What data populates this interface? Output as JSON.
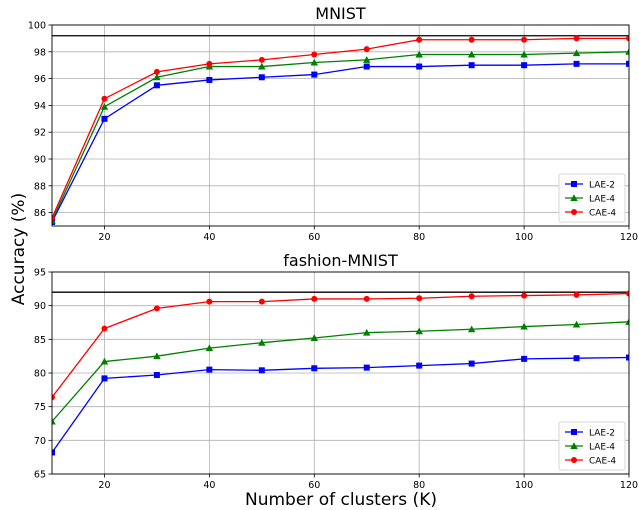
{
  "figure": {
    "ylabel": "Accuracy (%)",
    "xlabel": "Number of clusters (K)"
  },
  "chart_data": [
    {
      "type": "line",
      "title": "MNIST",
      "xlabel": "",
      "ylabel": "",
      "xlim": [
        10,
        120
      ],
      "ylim": [
        85,
        100
      ],
      "xticks": [
        20,
        40,
        60,
        80,
        100,
        120
      ],
      "yticks": [
        86,
        88,
        90,
        92,
        94,
        96,
        98,
        100
      ],
      "grid": true,
      "legend_position": "lower-right",
      "reference_line": 99.2,
      "reference_color": "#000000",
      "x": [
        10,
        20,
        30,
        40,
        50,
        60,
        70,
        80,
        90,
        100,
        110,
        120
      ],
      "series": [
        {
          "name": "LAE-2",
          "color": "#0000ff",
          "marker": "square",
          "values": [
            85.3,
            93.0,
            95.5,
            95.9,
            96.1,
            96.3,
            96.9,
            96.9,
            97.0,
            97.0,
            97.1,
            97.1
          ]
        },
        {
          "name": "LAE-4",
          "color": "#008000",
          "marker": "triangle",
          "values": [
            85.4,
            93.9,
            96.1,
            96.9,
            96.9,
            97.2,
            97.4,
            97.8,
            97.8,
            97.8,
            97.9,
            98.0
          ]
        },
        {
          "name": "CAE-4",
          "color": "#ff0000",
          "marker": "circle",
          "values": [
            85.6,
            94.5,
            96.5,
            97.1,
            97.4,
            97.8,
            98.2,
            98.9,
            98.9,
            98.9,
            99.0,
            99.0
          ]
        }
      ]
    },
    {
      "type": "line",
      "title": "fashion-MNIST",
      "xlabel": "",
      "ylabel": "",
      "xlim": [
        10,
        120
      ],
      "ylim": [
        65,
        95
      ],
      "xticks": [
        20,
        40,
        60,
        80,
        100,
        120
      ],
      "yticks": [
        65,
        70,
        75,
        80,
        85,
        90,
        95
      ],
      "grid": true,
      "legend_position": "lower-right",
      "reference_line": 92.0,
      "reference_color": "#000000",
      "x": [
        10,
        20,
        30,
        40,
        50,
        60,
        70,
        80,
        90,
        100,
        110,
        120
      ],
      "series": [
        {
          "name": "LAE-2",
          "color": "#0000ff",
          "marker": "square",
          "values": [
            68.2,
            79.2,
            79.7,
            80.5,
            80.4,
            80.7,
            80.8,
            81.1,
            81.4,
            82.1,
            82.2,
            82.3
          ]
        },
        {
          "name": "LAE-4",
          "color": "#008000",
          "marker": "triangle",
          "values": [
            72.8,
            81.7,
            82.5,
            83.7,
            84.5,
            85.2,
            86.0,
            86.2,
            86.5,
            86.9,
            87.2,
            87.6
          ]
        },
        {
          "name": "CAE-4",
          "color": "#ff0000",
          "marker": "circle",
          "values": [
            76.4,
            86.6,
            89.6,
            90.6,
            90.6,
            91.0,
            91.0,
            91.1,
            91.4,
            91.5,
            91.6,
            91.8
          ]
        }
      ]
    }
  ]
}
